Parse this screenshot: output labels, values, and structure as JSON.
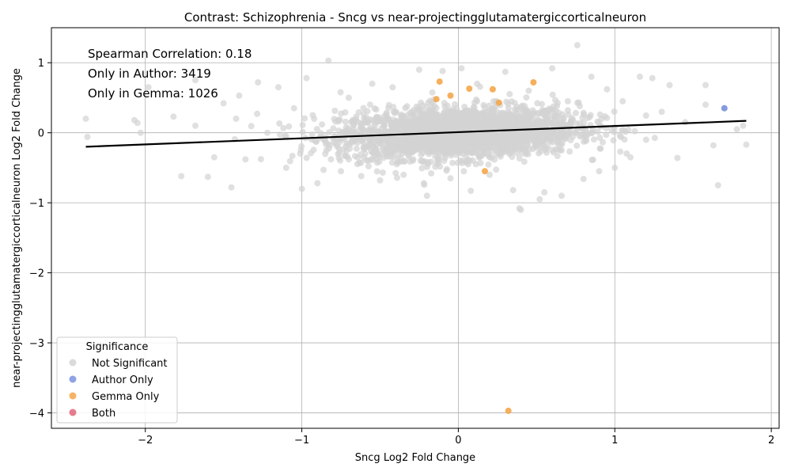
{
  "chart_data": {
    "type": "scatter",
    "title": "Contrast: Schizophrenia - Sncg vs near-projectingglutamatergiccorticalneuron",
    "xlabel": "Sncg Log2 Fold Change",
    "ylabel": "near-projectingglutamatergiccorticalneuron Log2 Fold Change",
    "xlim": [
      -2.6,
      2.05
    ],
    "ylim": [
      -4.22,
      1.5
    ],
    "x_ticks": [
      -2,
      -1,
      0,
      1,
      2
    ],
    "y_ticks": [
      -4,
      -3,
      -2,
      -1,
      0,
      1
    ],
    "x_tick_labels": [
      "−2",
      "−1",
      "0",
      "1",
      "2"
    ],
    "y_tick_labels": [
      "−4",
      "−3",
      "−2",
      "−1",
      "0",
      "1"
    ],
    "grid": true,
    "annotations": [
      "Spearman Correlation: 0.18",
      "Only in Author: 3419",
      "Only in Gemma: 1026"
    ],
    "trend_line": {
      "x": [
        -2.38,
        1.84
      ],
      "y": [
        -0.2,
        0.17
      ],
      "color": "#000000"
    },
    "legend": {
      "title": "Significance",
      "placement": "lower-left",
      "entries": [
        {
          "name": "Not Significant",
          "color": "#d3d3d3"
        },
        {
          "name": "Author Only",
          "color": "#7b93e0"
        },
        {
          "name": "Gemma Only",
          "color": "#f5a64a"
        },
        {
          "name": "Both",
          "color": "#e0667a"
        }
      ]
    },
    "series": [
      {
        "name": "Not Significant",
        "color": "#d3d3d3",
        "points": [
          [
            -2.38,
            0.2
          ],
          [
            -2.37,
            -0.06
          ],
          [
            -2.07,
            0.18
          ],
          [
            -2.05,
            0.14
          ],
          [
            -2.03,
            0.0
          ],
          [
            -1.98,
            0.65
          ],
          [
            -1.82,
            0.23
          ],
          [
            -1.77,
            -0.62
          ],
          [
            -1.68,
            0.75
          ],
          [
            -1.68,
            0.1
          ],
          [
            -1.6,
            -0.63
          ],
          [
            -1.56,
            -0.35
          ],
          [
            -1.5,
            0.42
          ],
          [
            -1.45,
            -0.78
          ],
          [
            -1.42,
            0.2
          ],
          [
            -1.4,
            0.53
          ],
          [
            -1.36,
            -0.38
          ],
          [
            -1.28,
            0.72
          ],
          [
            -1.22,
            0.0
          ],
          [
            -1.15,
            0.65
          ],
          [
            -1.1,
            -0.5
          ],
          [
            -1.05,
            0.35
          ],
          [
            -1.0,
            -0.8
          ],
          [
            -0.97,
            0.78
          ],
          [
            -0.9,
            -0.72
          ],
          [
            -0.83,
            1.03
          ],
          [
            -0.75,
            -0.55
          ],
          [
            -0.7,
            0.5
          ],
          [
            -0.62,
            -0.62
          ],
          [
            -0.55,
            0.7
          ],
          [
            -0.5,
            -0.68
          ],
          [
            -0.42,
            0.65
          ],
          [
            -0.35,
            -0.6
          ],
          [
            -0.25,
            0.9
          ],
          [
            -0.22,
            -0.72
          ],
          [
            -0.2,
            -0.9
          ],
          [
            -0.1,
            0.88
          ],
          [
            -0.05,
            -0.65
          ],
          [
            0.02,
            0.92
          ],
          [
            0.08,
            -0.83
          ],
          [
            0.12,
            0.7
          ],
          [
            0.2,
            -0.6
          ],
          [
            0.3,
            0.87
          ],
          [
            0.35,
            -0.82
          ],
          [
            0.39,
            -1.08
          ],
          [
            0.4,
            -1.1
          ],
          [
            0.45,
            0.6
          ],
          [
            0.52,
            -0.95
          ],
          [
            0.55,
            -0.85
          ],
          [
            0.6,
            0.92
          ],
          [
            0.66,
            -0.9
          ],
          [
            0.7,
            0.45
          ],
          [
            0.76,
            1.25
          ],
          [
            0.8,
            -0.66
          ],
          [
            0.85,
            0.8
          ],
          [
            0.9,
            -0.55
          ],
          [
            0.95,
            0.62
          ],
          [
            1.0,
            -0.5
          ],
          [
            1.05,
            0.45
          ],
          [
            1.1,
            -0.35
          ],
          [
            1.16,
            0.8
          ],
          [
            1.2,
            -0.1
          ],
          [
            1.24,
            0.78
          ],
          [
            1.3,
            0.3
          ],
          [
            1.35,
            0.68
          ],
          [
            1.4,
            -0.36
          ],
          [
            1.45,
            0.15
          ],
          [
            1.58,
            0.68
          ],
          [
            1.58,
            0.4
          ],
          [
            1.63,
            -0.18
          ],
          [
            1.66,
            -0.75
          ],
          [
            1.7,
            0.35
          ],
          [
            1.78,
            0.05
          ],
          [
            1.82,
            0.1
          ],
          [
            1.84,
            -0.17
          ]
        ]
      },
      {
        "name": "Author Only",
        "color": "#7b93e0",
        "points": [
          [
            1.7,
            0.35
          ]
        ]
      },
      {
        "name": "Gemma Only",
        "color": "#f5a64a",
        "points": [
          [
            -0.12,
            0.73
          ],
          [
            -0.05,
            0.53
          ],
          [
            -0.14,
            0.48
          ],
          [
            0.07,
            0.63
          ],
          [
            0.22,
            0.62
          ],
          [
            0.26,
            0.43
          ],
          [
            0.48,
            0.72
          ],
          [
            0.17,
            -0.55
          ],
          [
            0.32,
            -3.97
          ]
        ]
      },
      {
        "name": "Both",
        "color": "#e0667a",
        "points": []
      }
    ]
  }
}
